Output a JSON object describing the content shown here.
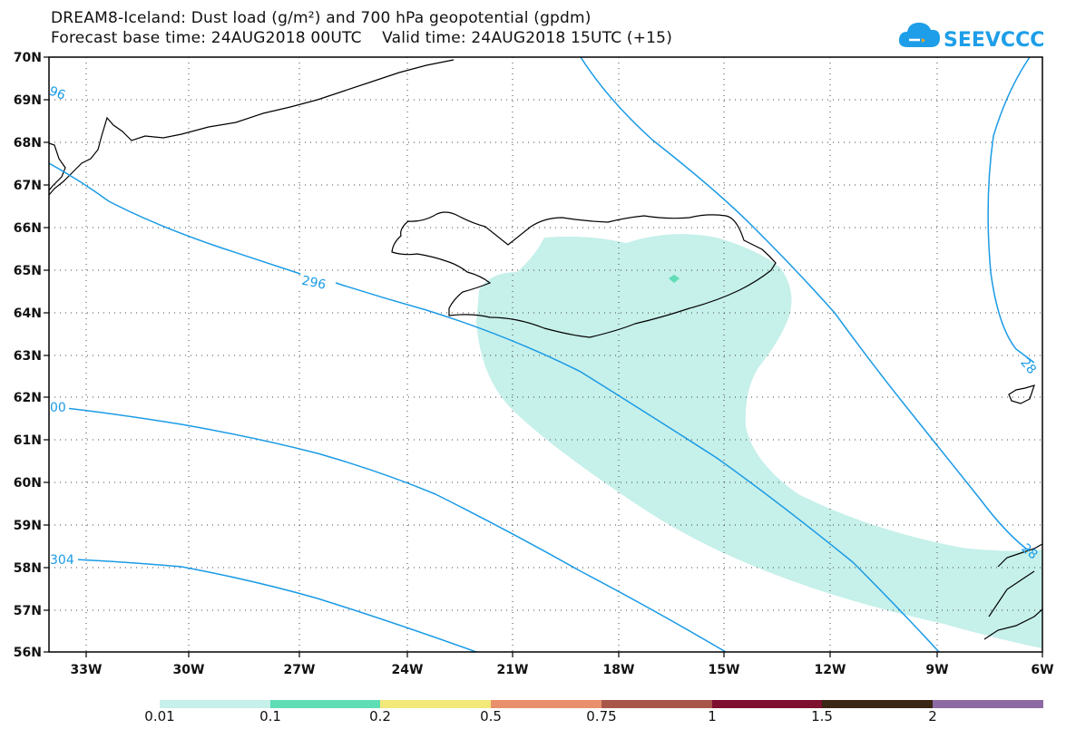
{
  "header": {
    "title_line1": "DREAM8-Iceland: Dust load (g/m²) and 700 hPa geopotential (gpdm)",
    "title_line2": "Forecast base time: 24AUG2018 00UTC    Valid time: 24AUG2018 15UTC (+15)",
    "logo_text": "SEEVCCC",
    "logo_icon": "cloud-icon",
    "logo_color": "#1e9ee8"
  },
  "map": {
    "lat_range": [
      56,
      70
    ],
    "lon_range": [
      -34.5,
      -6
    ],
    "lat_labels": [
      "70N",
      "69N",
      "68N",
      "67N",
      "66N",
      "65N",
      "64N",
      "63N",
      "62N",
      "61N",
      "60N",
      "59N",
      "58N",
      "57N",
      "56N"
    ],
    "lon_labels": [
      "33W",
      "30W",
      "27W",
      "24W",
      "21W",
      "18W",
      "15W",
      "12W",
      "9W",
      "6W"
    ],
    "contour_color": "#1a9be6",
    "contour_labels": [
      "296",
      "96",
      "00",
      "304",
      "28",
      "28"
    ],
    "dust_color": "#c6f0ea"
  },
  "colorbar": {
    "levels": [
      "0.01",
      "0.1",
      "0.2",
      "0.5",
      "0.75",
      "1",
      "1.5",
      "2"
    ],
    "colors": [
      "#c6f0ea",
      "#5fddb4",
      "#f3e87a",
      "#e8906c",
      "#a85648",
      "#7d0f2f",
      "#3a2615",
      "#8d6aa3"
    ]
  }
}
